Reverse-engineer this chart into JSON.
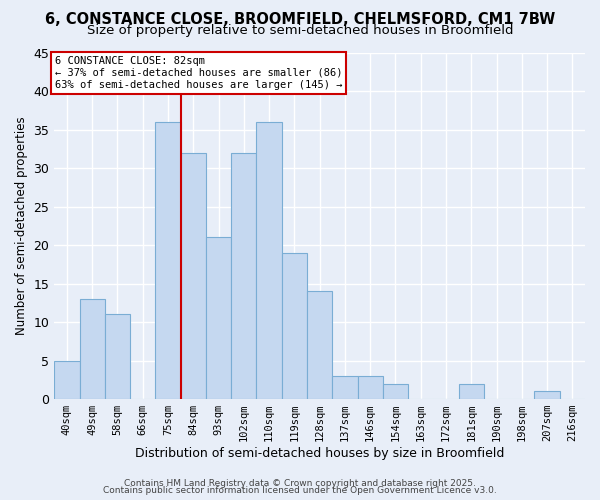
{
  "title1": "6, CONSTANCE CLOSE, BROOMFIELD, CHELMSFORD, CM1 7BW",
  "title2": "Size of property relative to semi-detached houses in Broomfield",
  "xlabel": "Distribution of semi-detached houses by size in Broomfield",
  "ylabel": "Number of semi-detached properties",
  "categories": [
    "40sqm",
    "49sqm",
    "58sqm",
    "66sqm",
    "75sqm",
    "84sqm",
    "93sqm",
    "102sqm",
    "110sqm",
    "119sqm",
    "128sqm",
    "137sqm",
    "146sqm",
    "154sqm",
    "163sqm",
    "172sqm",
    "181sqm",
    "190sqm",
    "198sqm",
    "207sqm",
    "216sqm"
  ],
  "values": [
    5,
    13,
    11,
    0,
    36,
    32,
    21,
    32,
    36,
    19,
    14,
    3,
    3,
    2,
    0,
    0,
    2,
    0,
    0,
    1,
    0
  ],
  "bar_color": "#c5d8f0",
  "bar_edge_color": "#7aadd4",
  "annotation_title": "6 CONSTANCE CLOSE: 82sqm",
  "annotation_line1": "← 37% of semi-detached houses are smaller (86)",
  "annotation_line2": "63% of semi-detached houses are larger (145) →",
  "annotation_box_facecolor": "#ffffff",
  "annotation_box_edgecolor": "#cc0000",
  "vertical_line_color": "#cc0000",
  "ylim": [
    0,
    45
  ],
  "yticks": [
    0,
    5,
    10,
    15,
    20,
    25,
    30,
    35,
    40,
    45
  ],
  "footer1": "Contains HM Land Registry data © Crown copyright and database right 2025.",
  "footer2": "Contains public sector information licensed under the Open Government Licence v3.0.",
  "bg_color": "#e8eef8",
  "grid_color": "#ffffff",
  "title1_fontsize": 10.5,
  "title2_fontsize": 9.5,
  "property_line_idx": 5
}
